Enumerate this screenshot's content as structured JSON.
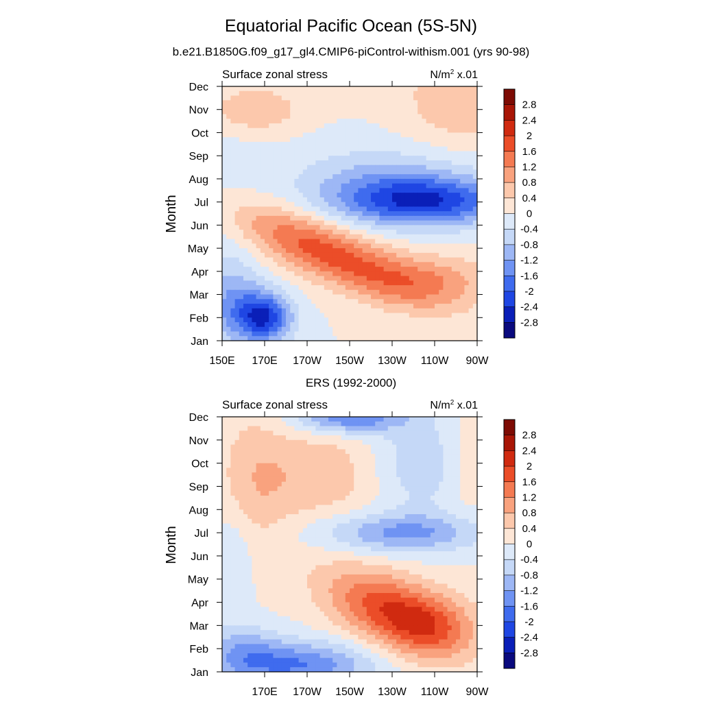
{
  "figure": {
    "title": "Equatorial Pacific Ocean (5S-5N)"
  },
  "colorbar": {
    "levels": [
      "-2.8",
      "-2.4",
      "-2",
      "-1.6",
      "-1.2",
      "-0.8",
      "-0.4",
      "0",
      "0.4",
      "0.8",
      "1.2",
      "1.6",
      "2",
      "2.4",
      "2.8"
    ],
    "colors": [
      "#0a0a7e",
      "#0a1fb8",
      "#1f46e3",
      "#3f6bee",
      "#6f93f3",
      "#9db7f5",
      "#c5d8f7",
      "#dde9f9",
      "#fde6d6",
      "#fcc8ac",
      "#f9a27e",
      "#f47a52",
      "#eb4d28",
      "#d02a10",
      "#a81506",
      "#7d0b04"
    ]
  },
  "chart_data": [
    {
      "type": "heatmap",
      "subtitle": "b.e21.B1850G.f09_g17_gl4.CMIP6-piControl-withism.001 (yrs 90-98)",
      "left_label": "Surface zonal stress",
      "units_label": "N/m",
      "units_sup": "2",
      "units_suffix": " x.01",
      "ylabel": "Month",
      "xlim": [
        150,
        270
      ],
      "x_ticks": [
        150,
        170,
        190,
        210,
        230,
        250,
        270
      ],
      "x_tick_labels": [
        "150E",
        "170E",
        "170W",
        "150W",
        "130W",
        "110W",
        "90W"
      ],
      "y_tick_labels": [
        "Jan",
        "Feb",
        "Mar",
        "Apr",
        "May",
        "Jun",
        "Jul",
        "Aug",
        "Sep",
        "Oct",
        "Nov",
        "Dec"
      ],
      "features": [
        {
          "lon": 170,
          "month": 2,
          "amp": -2.3,
          "sx": 9,
          "sy": 0.75
        },
        {
          "lon": 155,
          "month": 2.6,
          "amp": -1.0,
          "sx": 10,
          "sy": 1.2
        },
        {
          "lon": 200,
          "month": 4.8,
          "amp": 1.8,
          "sx": 32,
          "sy": 0.9,
          "tilt": -0.035
        },
        {
          "lon": 250,
          "month": 3.6,
          "amp": 0.9,
          "sx": 20,
          "sy": 0.8
        },
        {
          "lon": 245,
          "month": 7.0,
          "amp": -2.2,
          "sx": 28,
          "sy": 0.75
        },
        {
          "lon": 225,
          "month": 8.0,
          "amp": -0.8,
          "sx": 30,
          "sy": 1.0
        },
        {
          "lon": 165,
          "month": 11,
          "amp": 0.8,
          "sx": 15,
          "sy": 0.7
        },
        {
          "lon": 262,
          "month": 11.5,
          "amp": 0.8,
          "sx": 18,
          "sy": 1.4
        },
        {
          "lon": 150,
          "month": 6,
          "amp": -0.3,
          "sx": 12,
          "sy": 3
        }
      ]
    },
    {
      "type": "heatmap",
      "subtitle": "ERS (1992-2000)",
      "left_label": "Surface zonal stress",
      "units_label": "N/m",
      "units_sup": "2",
      "units_suffix": " x.01",
      "ylabel": "Month",
      "xlim": [
        150,
        270
      ],
      "x_ticks": [
        170,
        190,
        210,
        230,
        250,
        270
      ],
      "x_tick_labels": [
        "170E",
        "170W",
        "150W",
        "130W",
        "110W",
        "90W"
      ],
      "y_tick_labels": [
        "Jan",
        "Feb",
        "Mar",
        "Apr",
        "May",
        "Jun",
        "Jul",
        "Aug",
        "Sep",
        "Oct",
        "Nov",
        "Dec"
      ],
      "features": [
        {
          "lon": 185,
          "month": 1.3,
          "amp": -1.6,
          "sx": 25,
          "sy": 0.7
        },
        {
          "lon": 160,
          "month": 2.0,
          "amp": -0.8,
          "sx": 12,
          "sy": 0.8
        },
        {
          "lon": 230,
          "month": 3.6,
          "amp": 1.9,
          "sx": 22,
          "sy": 1.1,
          "tilt": -0.03
        },
        {
          "lon": 250,
          "month": 3.0,
          "amp": 0.8,
          "sx": 15,
          "sy": 1.0
        },
        {
          "lon": 235,
          "month": 7.0,
          "amp": -1.3,
          "sx": 28,
          "sy": 0.6
        },
        {
          "lon": 210,
          "month": 12,
          "amp": -1.7,
          "sx": 18,
          "sy": 0.5
        },
        {
          "lon": 243,
          "month": 10,
          "amp": -0.7,
          "sx": 15,
          "sy": 1.5
        },
        {
          "lon": 195,
          "month": 9.5,
          "amp": 0.7,
          "sx": 20,
          "sy": 1.5
        },
        {
          "lon": 165,
          "month": 9.0,
          "amp": 0.6,
          "sx": 12,
          "sy": 2.5
        },
        {
          "lon": 155,
          "month": 6.0,
          "amp": -0.5,
          "sx": 8,
          "sy": 1.5
        },
        {
          "lon": 265,
          "month": 10,
          "amp": 0.3,
          "sx": 8,
          "sy": 2
        }
      ]
    }
  ]
}
